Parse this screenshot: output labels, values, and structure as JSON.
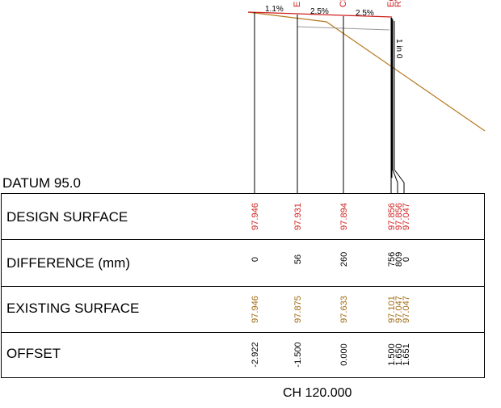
{
  "datum": {
    "label": "DATUM 95.0"
  },
  "chainage": {
    "label": "CH 120.000"
  },
  "colors": {
    "design": "#d11f1f",
    "existing": "#a06a12",
    "difference": "#000000",
    "offset": "#000000",
    "existing_line": "#b5781f",
    "crossfall_line": "#d11f1f",
    "sub_line": "#9a9a9a"
  },
  "rows": [
    {
      "key": "design",
      "label": "DESIGN SURFACE"
    },
    {
      "key": "difference",
      "label": "DIFFERENCE (mm)"
    },
    {
      "key": "existing",
      "label": "EXISTING SURFACE"
    },
    {
      "key": "offset",
      "label": "OFFSET"
    }
  ],
  "stations": [
    {
      "design": "97.946",
      "difference": "0",
      "existing": "97.946",
      "offset": "-2.922",
      "tag": ""
    },
    {
      "design": "97.931",
      "difference": "56",
      "existing": "97.875",
      "offset": "-1.500",
      "tag": "E"
    },
    {
      "design": "97.894",
      "difference": "260",
      "existing": "97.633",
      "offset": "0.000",
      "tag": "Cl"
    },
    {
      "design": "97.856",
      "difference": "756",
      "existing": "97.101",
      "offset": "1.500",
      "tag": "Eo"
    },
    {
      "design": "97.856",
      "difference": "809",
      "existing": "97.047",
      "offset": "1.650",
      "tag": "RV"
    },
    {
      "design": "97.047",
      "difference": "0",
      "existing": "97.047",
      "offset": "1.651",
      "tag": ""
    }
  ],
  "grades": [
    {
      "label": "1.1%"
    },
    {
      "label": "2.5%"
    },
    {
      "label": "2.5%"
    }
  ],
  "batter": {
    "label": "1 in 0"
  }
}
